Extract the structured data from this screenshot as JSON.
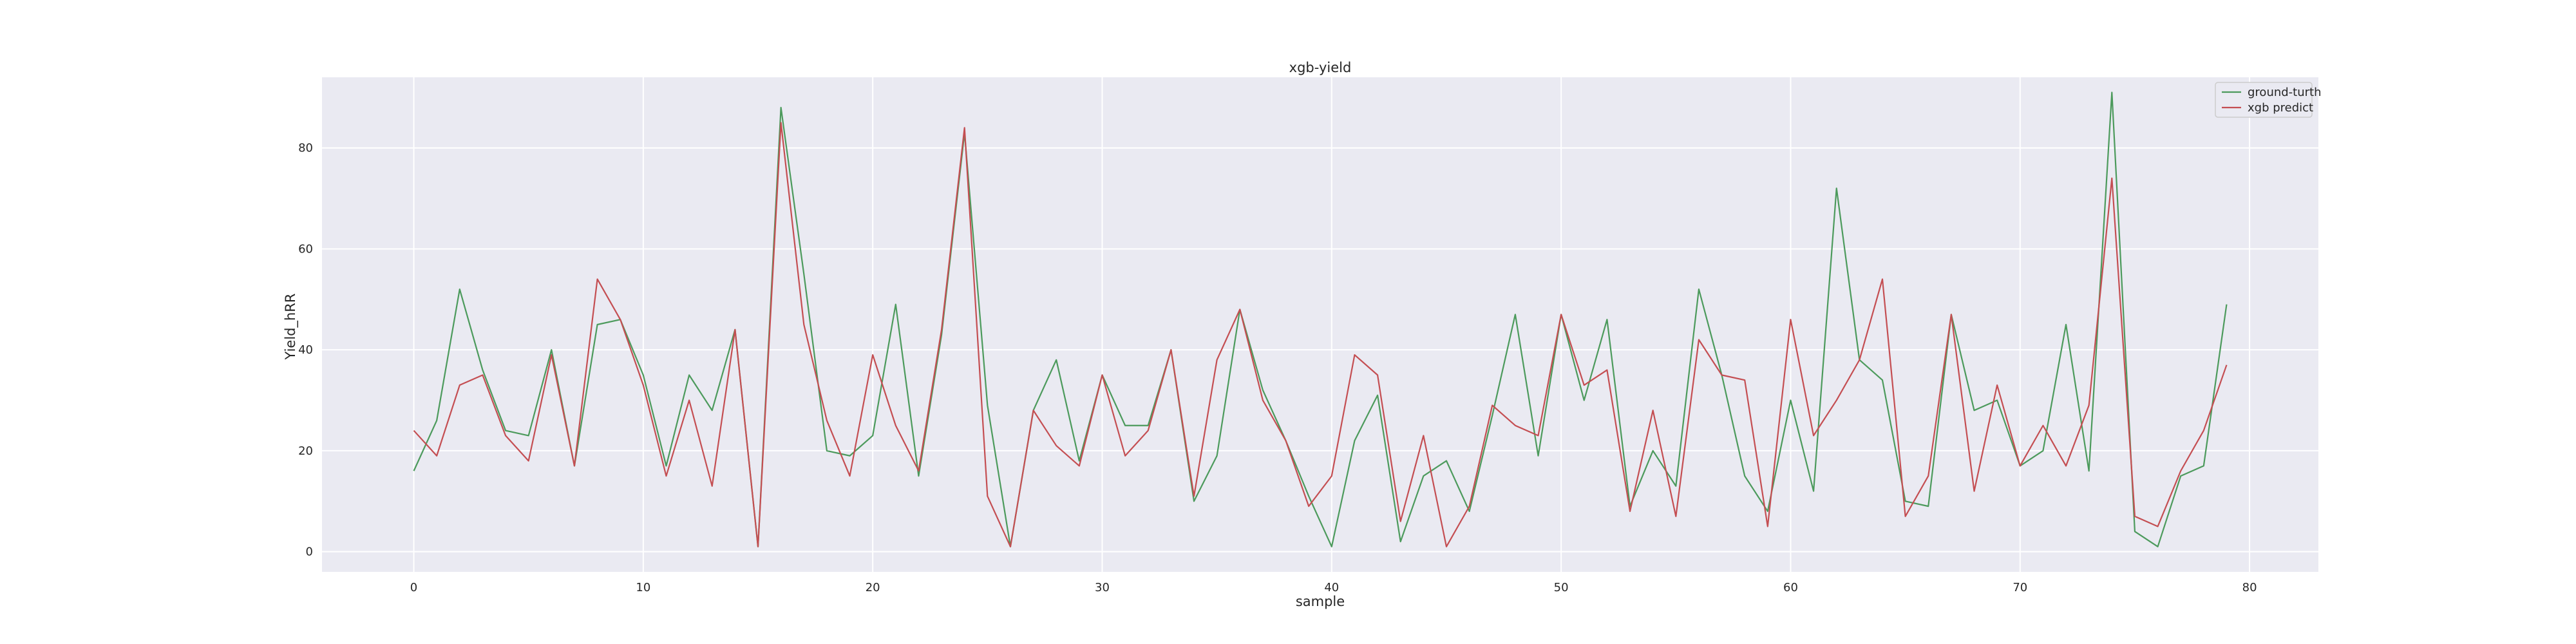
{
  "chart_data": {
    "type": "line",
    "title": "xgb-yield",
    "xlabel": "sample",
    "ylabel": "Yield_hRR",
    "xlim": [
      -4,
      83
    ],
    "ylim": [
      -4,
      94
    ],
    "xticks": [
      0,
      10,
      20,
      30,
      40,
      50,
      60,
      70,
      80
    ],
    "yticks": [
      0,
      20,
      40,
      60,
      80
    ],
    "grid": true,
    "legend_position": "top-right",
    "x": [
      0,
      1,
      2,
      3,
      4,
      5,
      6,
      7,
      8,
      9,
      10,
      11,
      12,
      13,
      14,
      15,
      16,
      17,
      18,
      19,
      20,
      21,
      22,
      23,
      24,
      25,
      26,
      27,
      28,
      29,
      30,
      31,
      32,
      33,
      34,
      35,
      36,
      37,
      38,
      39,
      40,
      41,
      42,
      43,
      44,
      45,
      46,
      47,
      48,
      49,
      50,
      51,
      52,
      53,
      54,
      55,
      56,
      57,
      58,
      59,
      60,
      61,
      62,
      63,
      64,
      65,
      66,
      67,
      68,
      69,
      70,
      71,
      72,
      73,
      74,
      75,
      76,
      77,
      78,
      79
    ],
    "series": [
      {
        "name": "ground-turth",
        "color": "#4c9a5c",
        "values": [
          16,
          26,
          52,
          36,
          24,
          23,
          40,
          17,
          45,
          46,
          35,
          17,
          35,
          28,
          44,
          1,
          88,
          55,
          20,
          19,
          23,
          49,
          15,
          43,
          83,
          29,
          1,
          28,
          38,
          18,
          35,
          25,
          25,
          40,
          10,
          19,
          48,
          32,
          22,
          11,
          1,
          22,
          31,
          2,
          15,
          18,
          8,
          27,
          47,
          19,
          47,
          30,
          46,
          9,
          20,
          13,
          52,
          35,
          15,
          8,
          30,
          12,
          72,
          38,
          34,
          10,
          9,
          47,
          28,
          30,
          17,
          20,
          45,
          16,
          91,
          4,
          1,
          15,
          17,
          49
        ]
      },
      {
        "name": "xgb predict",
        "color": "#c44e52",
        "values": [
          24,
          19,
          33,
          35,
          23,
          18,
          39,
          17,
          54,
          46,
          33,
          15,
          30,
          13,
          44,
          1,
          85,
          45,
          26,
          15,
          39,
          25,
          16,
          44,
          84,
          11,
          1,
          28,
          21,
          17,
          35,
          19,
          24,
          40,
          11,
          38,
          48,
          30,
          22,
          9,
          15,
          39,
          35,
          6,
          23,
          1,
          9,
          29,
          25,
          23,
          47,
          33,
          36,
          8,
          28,
          7,
          42,
          35,
          34,
          5,
          46,
          23,
          30,
          38,
          54,
          7,
          15,
          47,
          12,
          33,
          17,
          25,
          17,
          29,
          74,
          7,
          5,
          16,
          24,
          37
        ]
      }
    ]
  }
}
